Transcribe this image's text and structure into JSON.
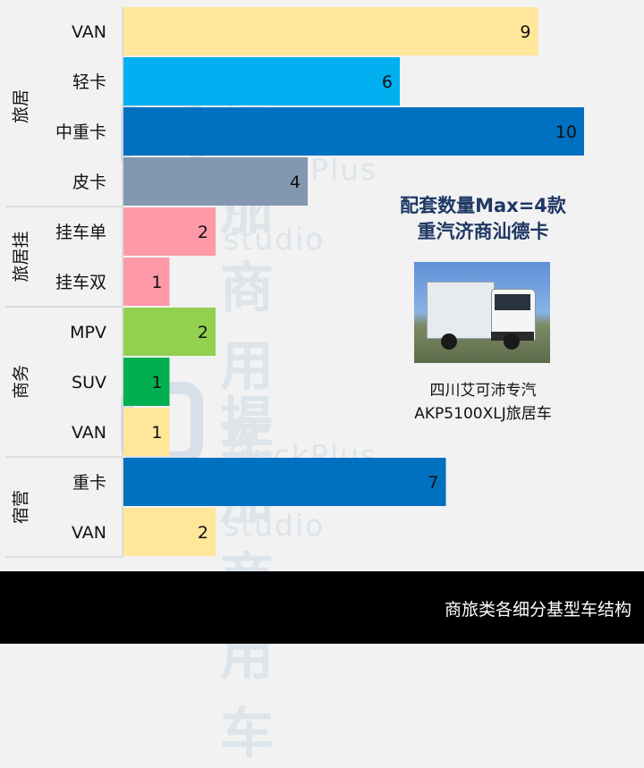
{
  "chart_data": {
    "type": "bar",
    "orientation": "horizontal",
    "groups": [
      {
        "name": "旅居",
        "categories": [
          {
            "label": "VAN",
            "value": 9,
            "color": "#ffe699"
          },
          {
            "label": "轻卡",
            "value": 6,
            "color": "#00b0f0"
          },
          {
            "label": "中重卡",
            "value": 10,
            "color": "#0070c0"
          },
          {
            "label": "皮卡",
            "value": 4,
            "color": "#8497b0"
          }
        ]
      },
      {
        "name": "旅居挂",
        "categories": [
          {
            "label": "挂车单",
            "value": 2,
            "color": "#ff99a8"
          },
          {
            "label": "挂车双",
            "value": 1,
            "color": "#ff99a8"
          }
        ]
      },
      {
        "name": "商务",
        "categories": [
          {
            "label": "MPV",
            "value": 2,
            "color": "#92d050"
          },
          {
            "label": "SUV",
            "value": 1,
            "color": "#00b050"
          },
          {
            "label": "VAN",
            "value": 1,
            "color": "#ffe699"
          }
        ]
      },
      {
        "name": "宿营",
        "categories": [
          {
            "label": "重卡",
            "value": 7,
            "color": "#0070c0"
          },
          {
            "label": "VAN",
            "value": 2,
            "color": "#ffe699"
          }
        ]
      }
    ],
    "xlim": [
      0,
      10
    ],
    "grid": false
  },
  "annotation": {
    "line1": "配套数量Max=4款",
    "line2": "重汽济商汕德卡"
  },
  "photo_caption": {
    "line1": "四川艾可沛专汽",
    "line2": "AKP5100XLJ旅居车"
  },
  "watermark": {
    "cn": "提加商用车",
    "en": "TruckPlus CV studio"
  },
  "footer": {
    "text": "商旅类各细分基型车结构"
  }
}
